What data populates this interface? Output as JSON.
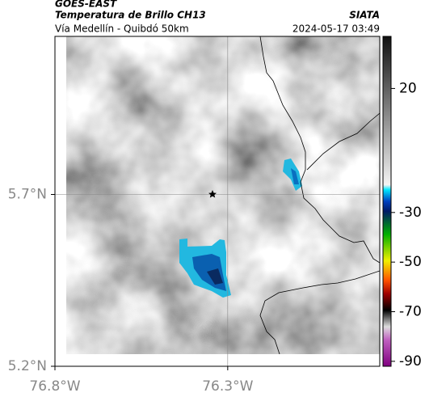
{
  "chart_data": {
    "type": "map",
    "source": "GOES-EAST",
    "title": "Temperatura de Brillo CH13",
    "credit": "SIATA",
    "subtitle": "Vía Medellín - Quibdó 50km",
    "timestamp": "2024-05-17 03:49",
    "xlim": [
      -76.8,
      -75.86
    ],
    "ylim": [
      5.2,
      6.16
    ],
    "xticks": [
      {
        "value": -76.8,
        "label": "76.8°W"
      },
      {
        "value": -76.3,
        "label": "76.3°W"
      }
    ],
    "yticks": [
      {
        "value": 5.2,
        "label": "5.2°N"
      },
      {
        "value": 5.7,
        "label": "5.7°N"
      }
    ],
    "grid": true,
    "colorbar": {
      "clim": [
        -92,
        41
      ],
      "ticks": [
        20,
        -30,
        -50,
        -70,
        -90
      ]
    }
  }
}
